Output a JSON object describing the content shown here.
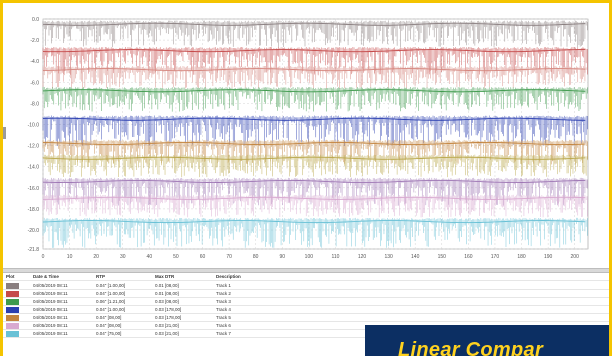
{
  "banner": {
    "text": "Linear Compar"
  },
  "chart_data": {
    "type": "line",
    "ylim": [
      -21.8,
      0
    ],
    "xlim": [
      0,
      205
    ],
    "y_ticks": [
      "0.0",
      "-2.0",
      "-4.0",
      "-6.0",
      "-8.0",
      "-10.0",
      "-12.0",
      "-14.0",
      "-16.0",
      "-18.0",
      "-20.0",
      "-21.8"
    ],
    "x_ticks": [
      "0",
      "10",
      "20",
      "30",
      "40",
      "50",
      "60",
      "70",
      "80",
      "90",
      "100",
      "110",
      "120",
      "130",
      "140",
      "150",
      "160",
      "170",
      "180",
      "190",
      "200"
    ],
    "grid": true,
    "legend": "table-below",
    "series": [
      {
        "color": "#8a7f80",
        "baseline": -0.5,
        "depth": 2.2
      },
      {
        "color": "#c54a4a",
        "baseline": -3.0,
        "depth": 2.3
      },
      {
        "color": "#d5877f",
        "baseline": -4.8,
        "depth": 1.8
      },
      {
        "color": "#3f9a4d",
        "baseline": -6.8,
        "depth": 2.0
      },
      {
        "color": "#2b3fb0",
        "baseline": -9.5,
        "depth": 2.6
      },
      {
        "color": "#c3843e",
        "baseline": -11.8,
        "depth": 2.0
      },
      {
        "color": "#b9a74a",
        "baseline": -13.2,
        "depth": 1.8
      },
      {
        "color": "#9f78b5",
        "baseline": -15.4,
        "depth": 2.3
      },
      {
        "color": "#d8a9d0",
        "baseline": -17.0,
        "depth": 1.8
      },
      {
        "color": "#69c1d6",
        "baseline": -19.2,
        "depth": 2.5
      }
    ]
  },
  "table": {
    "headers": [
      "Plot",
      "Date & Time",
      "RTP",
      "Max DTR",
      "Description"
    ],
    "rows": [
      {
        "color": "#8a7f80",
        "date": "04/05/2019 08:11",
        "rtp": "0.04\" [1.00,00]",
        "max": "0.01 [08,00]",
        "desc": "Track 1"
      },
      {
        "color": "#c54a4a",
        "date": "04/05/2019 08:11",
        "rtp": "0.04\" [1.00,00]",
        "max": "0.01 [08,00]",
        "desc": "Track 2"
      },
      {
        "color": "#3f9a4d",
        "date": "04/05/2019 08:11",
        "rtp": "0.06\" [1.21,00]",
        "max": "0.03 [08,00]",
        "desc": "Track 3"
      },
      {
        "color": "#2b3fb0",
        "date": "04/05/2019 08:11",
        "rtp": "0.04\" [1.00,00]",
        "max": "0.03 [178,00]",
        "desc": "Track 4"
      },
      {
        "color": "#c3843e",
        "date": "04/05/2019 08:11",
        "rtp": "0.04\" [08,00]",
        "max": "0.03 [178,00]",
        "desc": "Track 5"
      },
      {
        "color": "#d8a9d0",
        "date": "04/05/2019 08:11",
        "rtp": "0.04\" [08,00]",
        "max": "0.03 [21,00]",
        "desc": "Track 6"
      },
      {
        "color": "#69c1d6",
        "date": "04/05/2019 08:11",
        "rtp": "0.04\" [75,00]",
        "max": "0.03 [21,00]",
        "desc": "Track 7"
      }
    ]
  }
}
